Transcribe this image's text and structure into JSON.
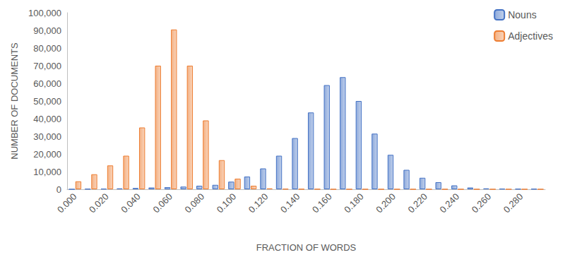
{
  "chart_data": {
    "type": "bar",
    "x_label": "FRACTION OF WORDS",
    "y_label": "NUMBER OF DOCUMENTS",
    "categories": [
      "0.000",
      null,
      "0.020",
      null,
      "0.040",
      null,
      "0.060",
      null,
      "0.080",
      null,
      "0.100",
      null,
      "0.120",
      null,
      "0.140",
      null,
      "0.160",
      null,
      "0.180",
      null,
      "0.200",
      null,
      "0.220",
      null,
      "0.240",
      null,
      "0.260",
      null,
      "0.280",
      null
    ],
    "series": [
      {
        "name": "Nouns",
        "color": "#4472c4",
        "values": [
          0,
          200,
          300,
          500,
          700,
          1000,
          1200,
          1500,
          2000,
          2500,
          4300,
          7200,
          11800,
          19000,
          29000,
          43500,
          59000,
          63500,
          50000,
          31500,
          19500,
          11000,
          6500,
          4000,
          2200,
          1000,
          500,
          300,
          200,
          200
        ]
      },
      {
        "name": "Adjectives",
        "color": "#ed7d31",
        "values": [
          4500,
          8500,
          13500,
          19000,
          35000,
          70000,
          90500,
          70000,
          39000,
          16500,
          6000,
          2000,
          500,
          200,
          100,
          100,
          0,
          0,
          0,
          0,
          0,
          0,
          0,
          0,
          0,
          0,
          0,
          0,
          0,
          0
        ]
      }
    ],
    "ylim": [
      0,
      100000
    ],
    "yticks": [
      0,
      {
        "value": 10000,
        "label": "10,000"
      },
      {
        "value": 20000,
        "label": "20,000"
      },
      {
        "value": 30000,
        "label": "30,000"
      },
      {
        "value": 40000,
        "label": "40,000"
      },
      {
        "value": 50000,
        "label": "50,000"
      },
      {
        "value": 60000,
        "label": "60,000"
      },
      {
        "value": 70000,
        "label": "70,000"
      },
      {
        "value": 80000,
        "label": "80,000"
      },
      {
        "value": 90000,
        "label": "90,000"
      },
      {
        "value": 100000,
        "label": "100,000"
      }
    ],
    "grid": false,
    "legend": "top-right"
  }
}
